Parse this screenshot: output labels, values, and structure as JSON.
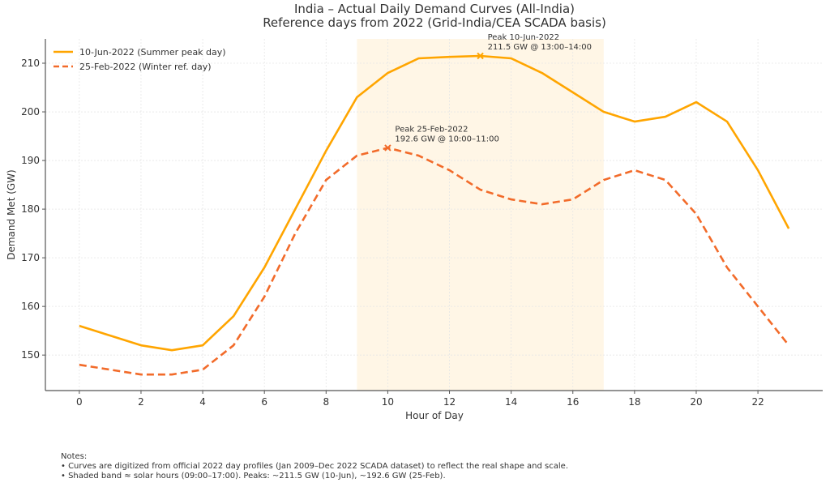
{
  "chart_data": {
    "type": "line",
    "title": "India – Actual Daily Demand Curves (All-India)",
    "subtitle": "Reference days from 2022 (Grid-India/CEA SCADA basis)",
    "xlabel": "Hour of Day",
    "ylabel": "Demand Met (GW)",
    "xlim": [
      -1.1,
      24.1
    ],
    "ylim": [
      142.7,
      215
    ],
    "xticks": [
      0,
      2,
      4,
      6,
      8,
      10,
      12,
      14,
      16,
      18,
      20,
      22
    ],
    "yticks": [
      150,
      160,
      170,
      180,
      190,
      200,
      210
    ],
    "grid": true,
    "legend_position": "top-left",
    "x": [
      0,
      1,
      2,
      3,
      4,
      5,
      6,
      7,
      8,
      9,
      10,
      11,
      12,
      13,
      14,
      15,
      16,
      17,
      18,
      19,
      20,
      21,
      22,
      23
    ],
    "series": [
      {
        "name": "10-Jun-2022 (Summer peak day)",
        "color": "#FFA500",
        "style": "solid",
        "values": [
          156,
          154,
          152,
          151,
          152,
          158,
          168,
          180,
          192,
          203,
          208,
          211,
          211.3,
          211.5,
          211,
          208,
          204,
          200,
          198,
          199,
          202,
          198,
          188,
          176
        ]
      },
      {
        "name": "25-Feb-2022 (Winter ref. day)",
        "color": "#F26B2A",
        "style": "dashed",
        "values": [
          148,
          147,
          146,
          146,
          147,
          152,
          162,
          175,
          186,
          191,
          192.6,
          191,
          188,
          184,
          182,
          181,
          182,
          186,
          188,
          186,
          179,
          168,
          160,
          152
        ]
      }
    ],
    "shaded_band": {
      "x_start": 9,
      "x_end": 17,
      "color": "#FFF6E6"
    },
    "annotations": [
      {
        "series": 0,
        "x": 13,
        "y": 211.5,
        "line1": "Peak 10-Jun-2022",
        "line2": "211.5 GW @ 13:00–14:00"
      },
      {
        "series": 1,
        "x": 10,
        "y": 192.6,
        "line1": "Peak 25-Feb-2022",
        "line2": "192.6 GW @ 10:00–11:00"
      }
    ]
  },
  "notes": {
    "heading": "Notes:",
    "lines": [
      "• Curves are digitized from official 2022 day profiles (Jan 2009–Dec 2022 SCADA dataset) to reflect the real shape and scale.",
      "• Shaded band ≈ solar hours (09:00–17:00). Peaks: ~211.5 GW (10-Jun), ~192.6 GW (25-Feb)."
    ]
  }
}
